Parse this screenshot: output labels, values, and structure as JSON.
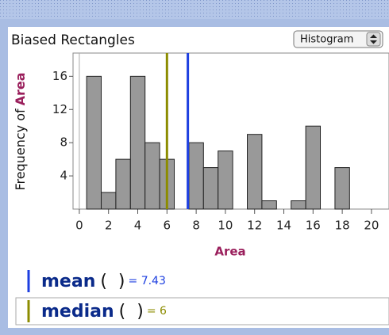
{
  "chart_data": {
    "type": "histogram",
    "title": "Biased Rectangles",
    "control": "Histogram",
    "xlabel": "Area",
    "ylabel": "Frequency of",
    "yattribute": "Area",
    "bins": [
      0.5,
      1.5,
      2.5,
      3.5,
      4.5,
      5.5,
      6.5,
      7.5,
      8.5,
      9.5,
      10.5,
      11.5,
      12.5,
      13.5,
      14.5,
      15.5,
      16.5,
      17.5,
      18.5
    ],
    "values": [
      16,
      2,
      6,
      16,
      8,
      6,
      0,
      8,
      5,
      7,
      0,
      9,
      1,
      0,
      1,
      10,
      0,
      5
    ],
    "color": "#999999",
    "xlim": [
      -0.43,
      21.2
    ],
    "xticks": [
      0,
      2,
      4,
      6,
      8,
      10,
      12,
      14,
      16,
      18,
      20
    ],
    "ylim": [
      0,
      18.8
    ],
    "yticks": [
      4,
      8,
      12,
      16
    ],
    "statistics": [
      {
        "name": "mean",
        "args": "(  )",
        "value": 7.43,
        "value_label": "= 7.43",
        "color": "#1d3fe0"
      },
      {
        "name": "median",
        "args": "(  )",
        "value": 6,
        "value_label": "= 6",
        "color": "#8c8c00"
      }
    ]
  }
}
